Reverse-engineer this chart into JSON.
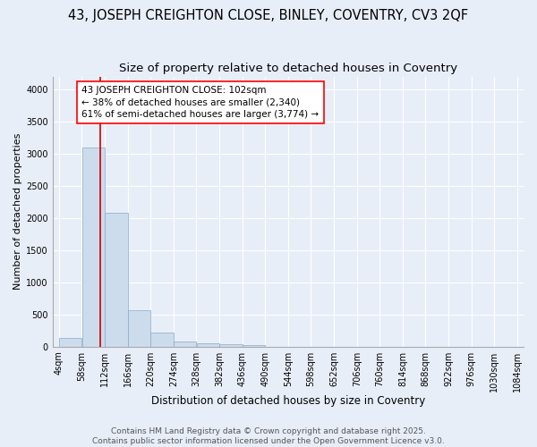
{
  "title1": "43, JOSEPH CREIGHTON CLOSE, BINLEY, COVENTRY, CV3 2QF",
  "title2": "Size of property relative to detached houses in Coventry",
  "xlabel": "Distribution of detached houses by size in Coventry",
  "ylabel": "Number of detached properties",
  "bin_labels": [
    "4sqm",
    "58sqm",
    "112sqm",
    "166sqm",
    "220sqm",
    "274sqm",
    "328sqm",
    "382sqm",
    "436sqm",
    "490sqm",
    "544sqm",
    "598sqm",
    "652sqm",
    "706sqm",
    "760sqm",
    "814sqm",
    "868sqm",
    "922sqm",
    "976sqm",
    "1030sqm",
    "1084sqm"
  ],
  "bin_edges": [
    4,
    58,
    112,
    166,
    220,
    274,
    328,
    382,
    436,
    490,
    544,
    598,
    652,
    706,
    760,
    814,
    868,
    922,
    976,
    1030,
    1084
  ],
  "bar_heights": [
    130,
    3100,
    2080,
    570,
    220,
    75,
    50,
    40,
    30,
    0,
    0,
    0,
    0,
    0,
    0,
    0,
    0,
    0,
    0,
    0
  ],
  "bar_color": "#ccdcec",
  "bar_edgecolor": "#88aacc",
  "bar_linewidth": 0.5,
  "red_line_x": 102,
  "red_line_color": "#cc0000",
  "annotation_line1": "43 JOSEPH CREIGHTON CLOSE: 102sqm",
  "annotation_line2": "← 38% of detached houses are smaller (2,340)",
  "annotation_line3": "61% of semi-detached houses are larger (3,774) →",
  "ylim": [
    0,
    4200
  ],
  "yticks": [
    0,
    500,
    1000,
    1500,
    2000,
    2500,
    3000,
    3500,
    4000
  ],
  "bg_color": "#e8eef8",
  "plot_bg_color": "#e8eef8",
  "grid_color": "#ffffff",
  "footer1": "Contains HM Land Registry data © Crown copyright and database right 2025.",
  "footer2": "Contains public sector information licensed under the Open Government Licence v3.0.",
  "title1_fontsize": 10.5,
  "title2_fontsize": 9.5,
  "xlabel_fontsize": 8.5,
  "ylabel_fontsize": 8,
  "tick_fontsize": 7,
  "annotation_fontsize": 7.5,
  "footer_fontsize": 6.5
}
